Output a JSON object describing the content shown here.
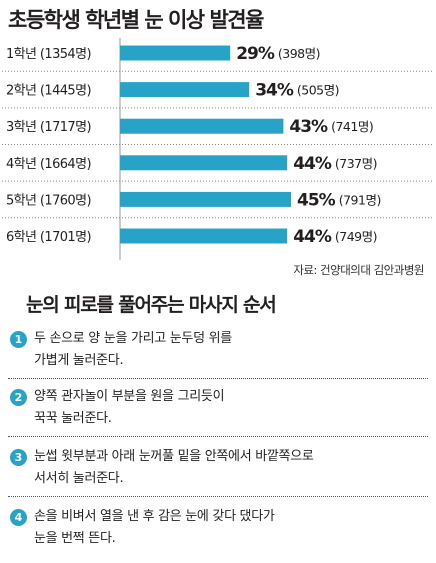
{
  "title": "초등학생 학년별 눈 이상 발견율",
  "chart_data": {
    "type": "bar",
    "orientation": "horizontal",
    "categories": [
      "1학년 (1354명)",
      "2학년 (1445명)",
      "3학년 (1717명)",
      "4학년 (1664명)",
      "5학년 (1760명)",
      "6학년 (1701명)"
    ],
    "values": [
      29,
      34,
      43,
      44,
      45,
      44
    ],
    "value_labels": [
      "29%",
      "34%",
      "43%",
      "44%",
      "45%",
      "44%"
    ],
    "count_labels": [
      "(398명)",
      "(505명)",
      "(741명)",
      "(737명)",
      "(791명)",
      "(749명)"
    ],
    "unit": "%",
    "xlim": [
      0,
      100
    ],
    "bar_color": "#27a3c8",
    "grid": false,
    "legend": "none"
  },
  "source": "자료: 건양대의대 김안과병원",
  "massage": {
    "title": "눈의 피로를 풀어주는 마사지 순서",
    "accent_color": "#27a3c8",
    "steps": [
      {
        "number": "1",
        "text": "두 손으로 양 눈을 가리고 눈두덩 위를\n가볍게 눌러준다."
      },
      {
        "number": "2",
        "text": "양쪽 관자놀이 부분을 원을 그리듯이\n꾹꾹 눌러준다."
      },
      {
        "number": "3",
        "text": "눈썹 윗부분과 아래 눈꺼풀 밑을 안쪽에서 바깥쪽으로\n서서히 눌러준다."
      },
      {
        "number": "4",
        "text": "손을 비벼서 열을 낸 후 감은 눈에 갖다 댔다가\n눈을 번쩍 뜬다."
      }
    ]
  }
}
